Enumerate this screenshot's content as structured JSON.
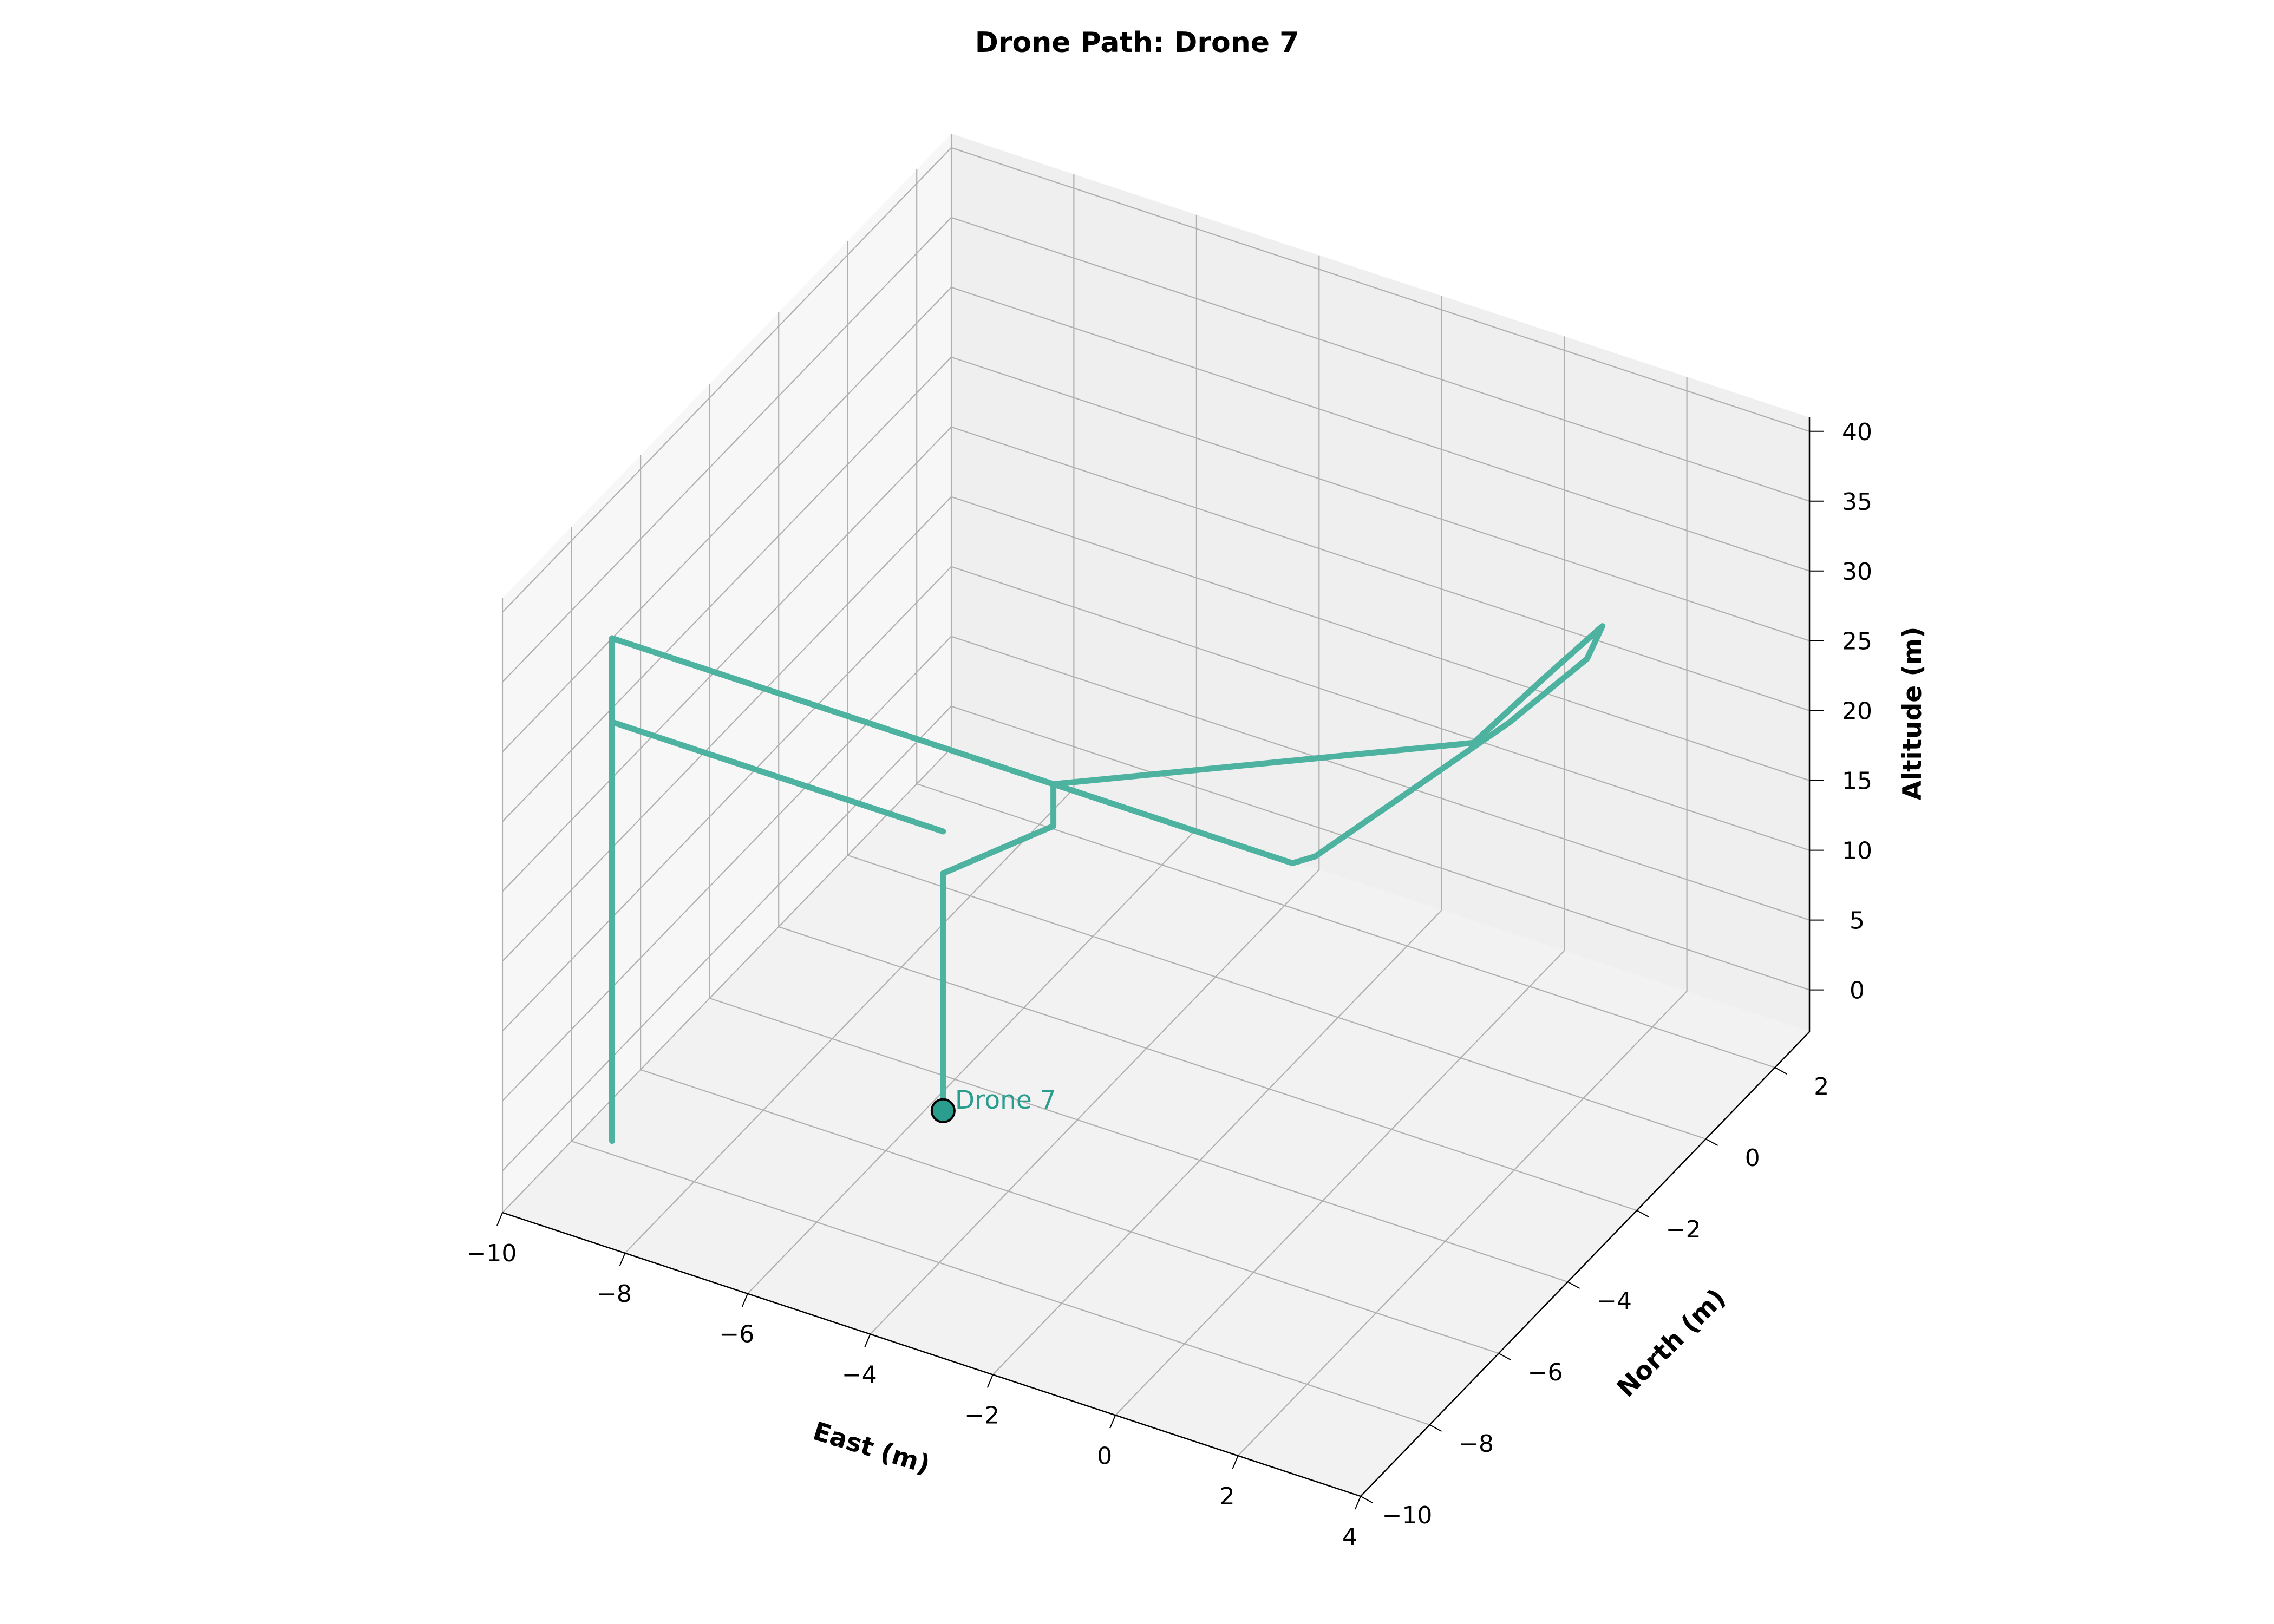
{
  "chart_data": {
    "type": "line",
    "title": "Drone Path: Drone 7",
    "xlabel": "East (m)",
    "ylabel": "North (m)",
    "zlabel": "Altitude (m)",
    "xlim": [
      -10,
      4
    ],
    "ylim": [
      -10,
      3
    ],
    "zlim": [
      -3,
      41
    ],
    "xticks": [
      -10,
      -8,
      -6,
      -4,
      -2,
      0,
      2,
      4
    ],
    "yticks": [
      -10,
      -8,
      -6,
      -4,
      -2,
      0,
      2
    ],
    "zticks": [
      0,
      5,
      10,
      15,
      20,
      25,
      30,
      35,
      40
    ],
    "xtick_labels": [
      "−10",
      "−8",
      "−6",
      "−4",
      "−2",
      "0",
      "2",
      "4"
    ],
    "ytick_labels": [
      "−10",
      "−8",
      "−6",
      "−4",
      "−2",
      "0",
      "2"
    ],
    "ztick_labels": [
      "0",
      "5",
      "10",
      "15",
      "20",
      "25",
      "30",
      "35",
      "40"
    ],
    "grid": true,
    "series": [
      {
        "name": "Drone 7",
        "color": "#4db3a0",
        "x": [
          -3.6,
          -3.6,
          -3.6,
          -3.6,
          -1.8,
          -1.8,
          2.1,
          2.3,
          3.1,
          3.3,
          3.1,
          2.5,
          1.9,
          -1.8,
          -9.0,
          -9.0,
          -3.6,
          -9.0,
          -9.0
        ],
        "y": [
          -8.6,
          -8.6,
          -8.6,
          -8.6,
          -8.6,
          -8.6,
          -8.6,
          -8.3,
          -4.1,
          -2.2,
          -1.4,
          -2.0,
          -3.0,
          -8.6,
          -8.6,
          -8.6,
          -8.6,
          -8.6,
          -8.6
        ],
        "z": [
          10,
          17,
          24,
          27,
          33,
          36,
          36,
          36,
          36,
          36,
          36,
          33,
          30,
          36,
          36,
          30,
          30,
          30,
          17
        ]
      }
    ],
    "marker": {
      "x": -3.6,
      "y": -8.6,
      "z": 10,
      "label": "Drone 7",
      "color": "#2a9d8f"
    },
    "extra_segment": {
      "x": [
        -9.0,
        -9.0
      ],
      "y": [
        -8.6,
        -8.6
      ],
      "z": [
        36,
        0
      ]
    }
  }
}
